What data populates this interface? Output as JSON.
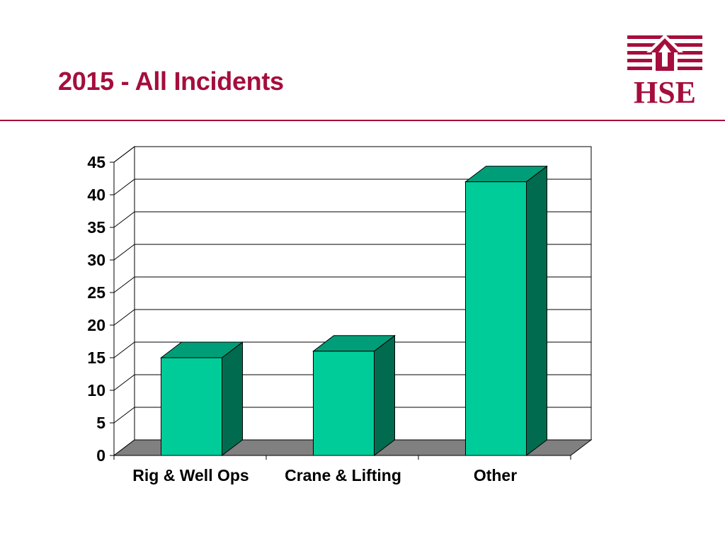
{
  "slide": {
    "title": "2015 - All Incidents"
  },
  "logo": {
    "text": "HSE",
    "icon": "hse-house-icon",
    "color": "#a50e3c"
  },
  "chart_data": {
    "type": "bar",
    "style": "3d",
    "categories": [
      "Rig & Well Ops",
      "Crane & Lifting",
      "Other"
    ],
    "values": [
      15,
      16,
      42
    ],
    "ylim": [
      0,
      45
    ],
    "yticks": [
      0,
      5,
      10,
      15,
      20,
      25,
      30,
      35,
      40,
      45
    ],
    "title": "",
    "xlabel": "",
    "ylabel": "",
    "grid": true,
    "legend": "none",
    "colors": {
      "bar_front": "#00cc99",
      "bar_side": "#006b4f",
      "bar_top": "#009e78",
      "floor": "#808080"
    }
  }
}
